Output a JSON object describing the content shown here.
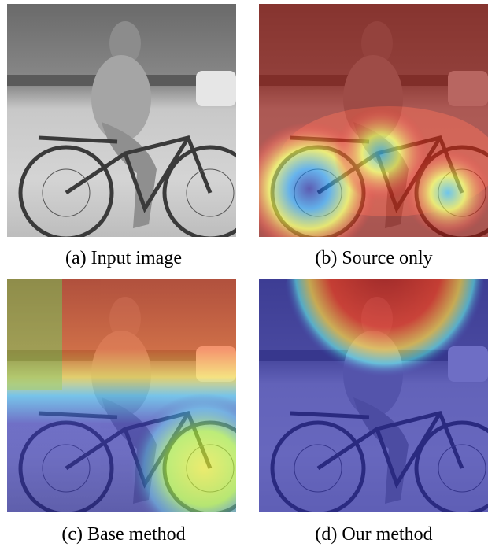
{
  "panels": [
    {
      "caption": "(a) Input image"
    },
    {
      "caption": "(b) Source only"
    },
    {
      "caption": "(c) Base method"
    },
    {
      "caption": "(d) Our method"
    }
  ]
}
